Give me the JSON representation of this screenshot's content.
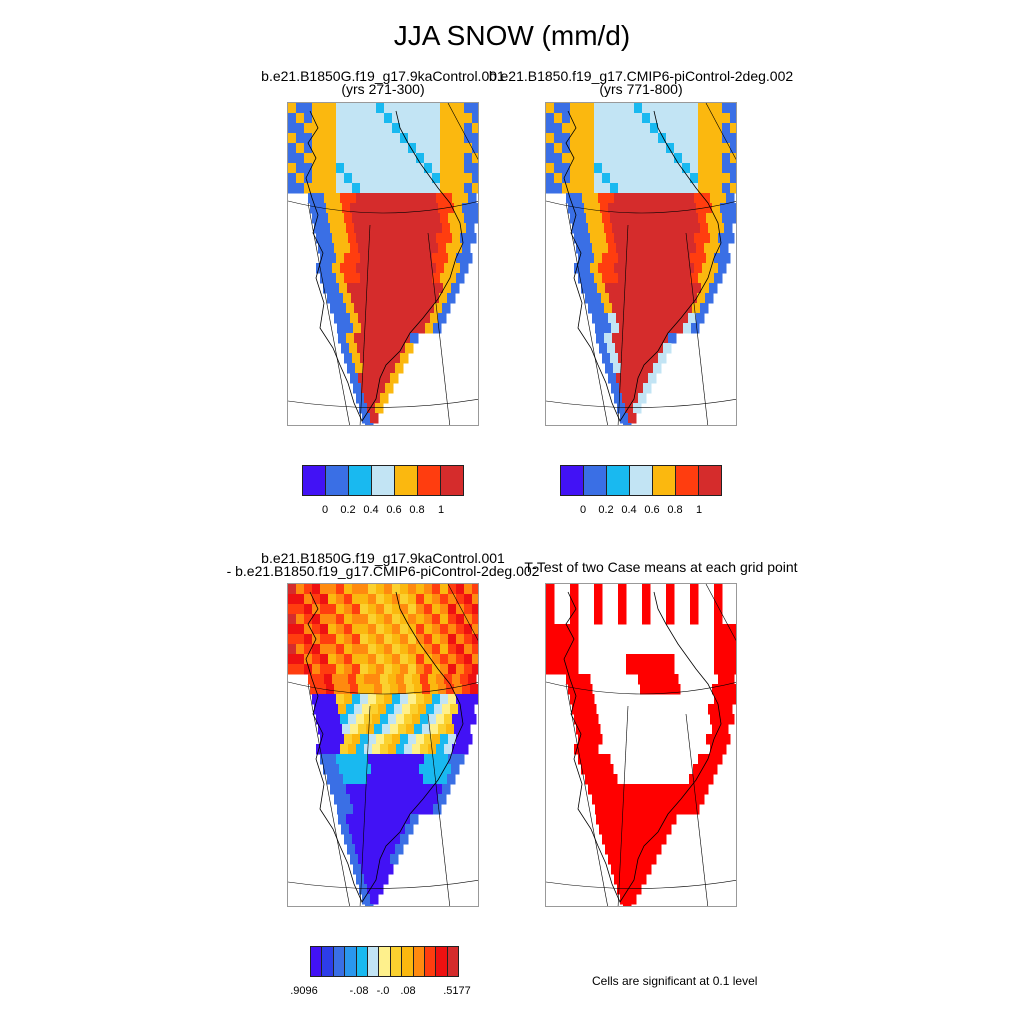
{
  "title": "JJA SNOW (mm/d)",
  "panels": [
    {
      "title_line1": "b.e21.B1850G.f19_g17.9kaControl.001",
      "title_line2": "(yrs 271-300)"
    },
    {
      "title_line1": "b.e21.B1850.f19_g17.CMIP6-piControl-2deg.002",
      "title_line2": "(yrs 771-800)"
    },
    {
      "title_line1": "b.e21.B1850G.f19_g17.9kaControl.001",
      "title_line2": "- b.e21.B1850.f19_g17.CMIP6-piControl-2deg.002"
    },
    {
      "title_line1": "T-Test of two Case means at each grid point",
      "title_line2": ""
    }
  ],
  "colorbar_top": {
    "colors": [
      "#4212f5",
      "#3a6fe5",
      "#19b9f0",
      "#c2e4f4",
      "#fbb80f",
      "#ff3d0f",
      "#d52c2c"
    ],
    "labels": [
      "0",
      "0.2",
      "0.4",
      "0.6",
      "0.8",
      "1"
    ]
  },
  "colorbar_diff": {
    "colors": [
      "#4212f5",
      "#2d3de9",
      "#3a6fe5",
      "#2a97ee",
      "#19b9f0",
      "#c2e4f4",
      "#fef08c",
      "#fbd12f",
      "#fbb80f",
      "#ff8a0f",
      "#ff3d0f",
      "#ee1111",
      "#d52c2c"
    ],
    "labels": [
      ".9096",
      "-.08",
      "-.0",
      ".08",
      ".5177"
    ]
  },
  "significance_note": "Cells are significant at 0.1 level",
  "significance_color": "#ff0000"
}
